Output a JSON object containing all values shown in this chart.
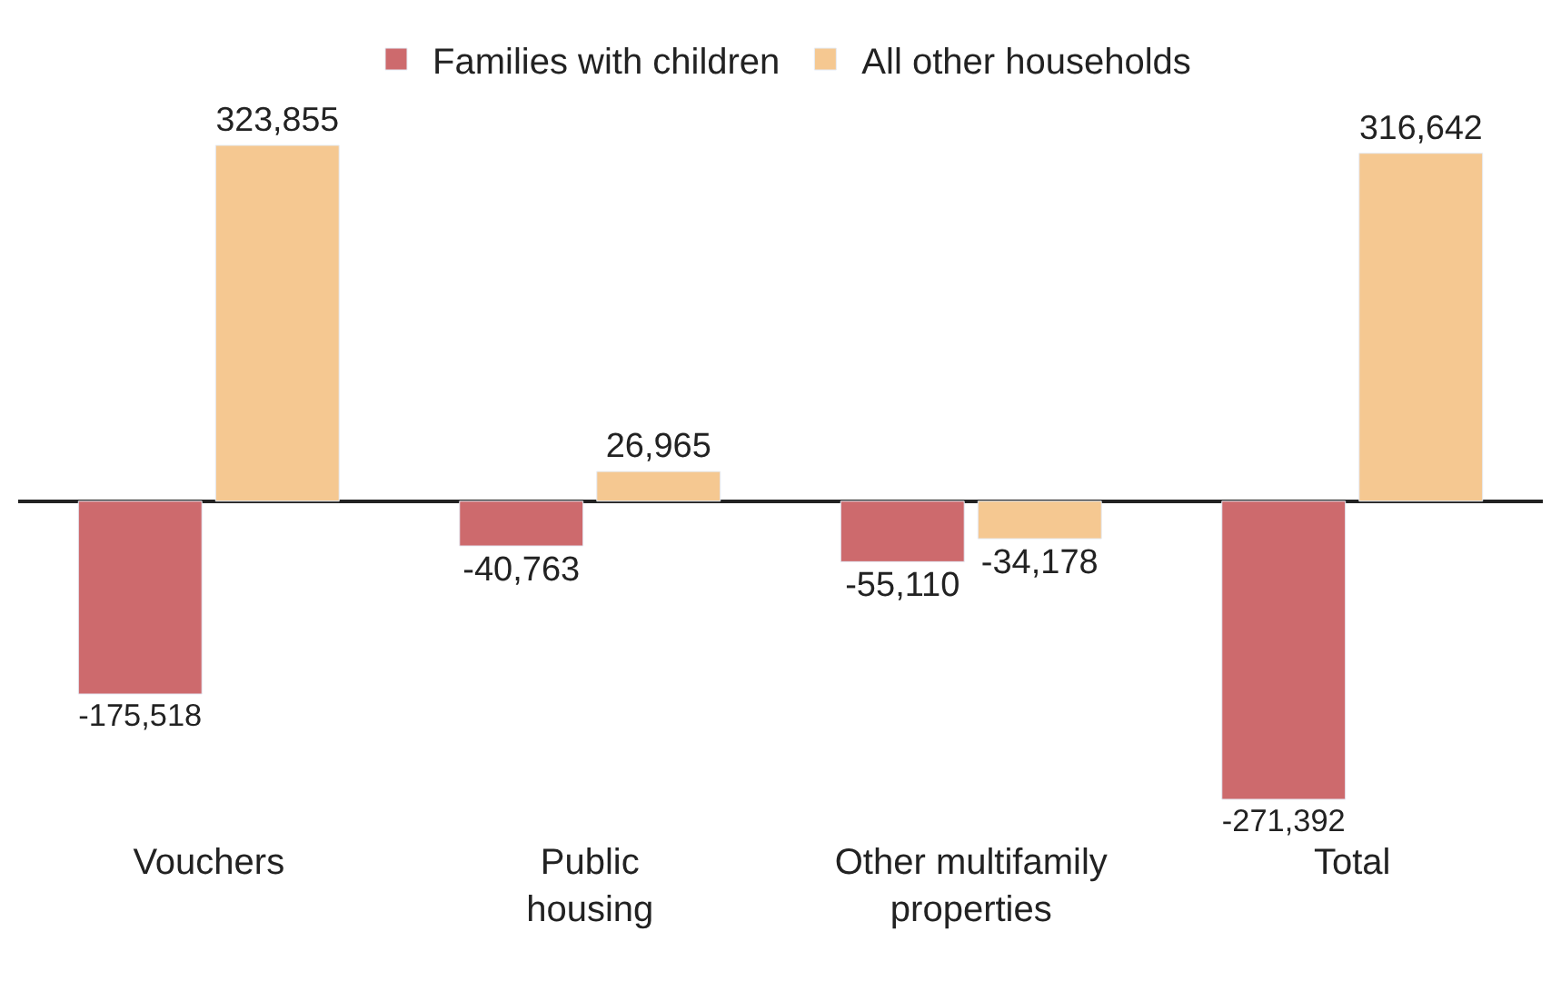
{
  "chart_data": {
    "type": "bar",
    "categories": [
      "Vouchers",
      "Public housing",
      "Other multifamily properties",
      "Total"
    ],
    "series": [
      {
        "name": "Families with children",
        "color": "#cd6a6d",
        "values": [
          -175518,
          -40763,
          -55110,
          -271392
        ],
        "value_labels": [
          "-175,518",
          "-40,763",
          "-55,110",
          "-271,392"
        ]
      },
      {
        "name": "All other households",
        "color": "#f5c891",
        "values": [
          323855,
          26965,
          -34178,
          316642
        ],
        "value_labels": [
          "323,855",
          "26,965",
          "-34,178",
          "316,642"
        ]
      }
    ],
    "legend": "top",
    "tick_labels": "x"
  }
}
